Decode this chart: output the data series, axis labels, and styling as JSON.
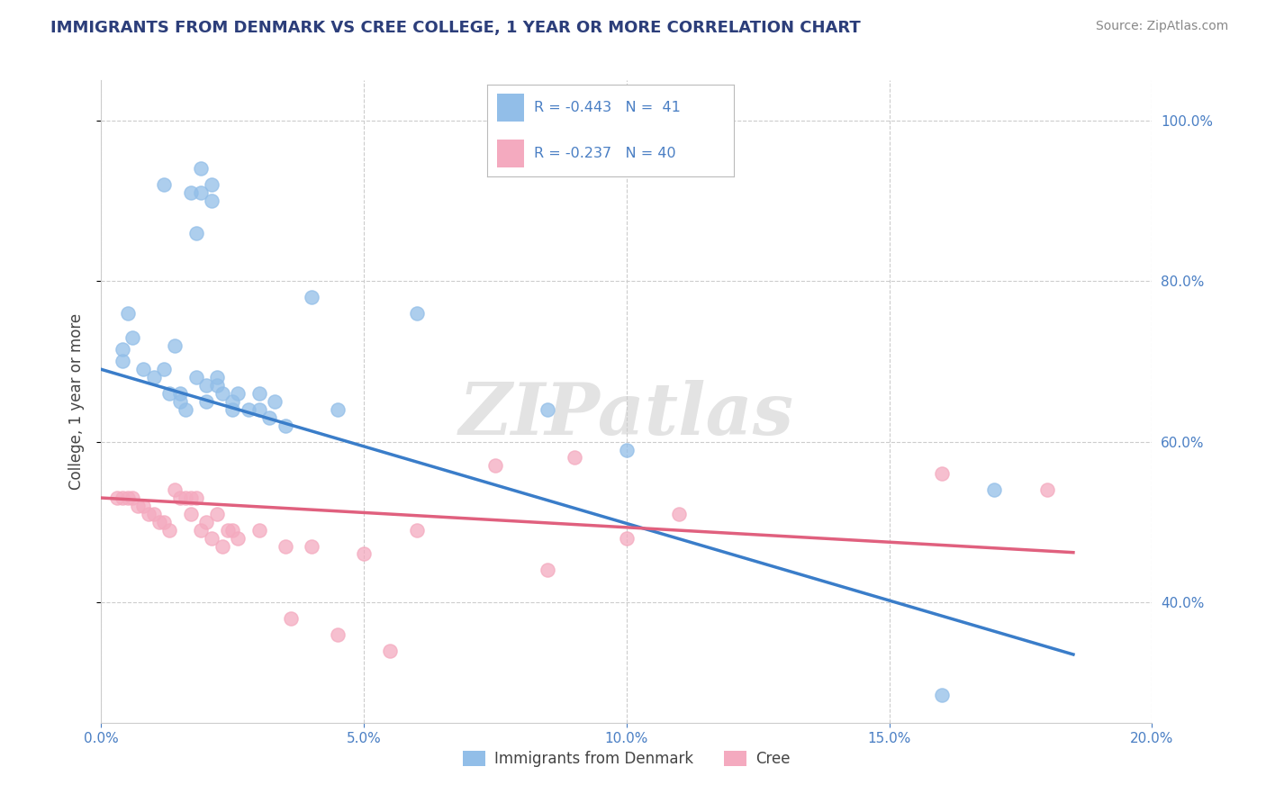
{
  "title": "IMMIGRANTS FROM DENMARK VS CREE COLLEGE, 1 YEAR OR MORE CORRELATION CHART",
  "source_text": "Source: ZipAtlas.com",
  "ylabel": "College, 1 year or more",
  "xlim": [
    0.0,
    0.2
  ],
  "ylim": [
    0.25,
    1.05
  ],
  "xticks": [
    0.0,
    0.05,
    0.1,
    0.15,
    0.2
  ],
  "xticklabels": [
    "0.0%",
    "5.0%",
    "10.0%",
    "15.0%",
    "20.0%"
  ],
  "yticks": [
    0.4,
    0.6,
    0.8,
    1.0
  ],
  "yticklabels": [
    "40.0%",
    "60.0%",
    "80.0%",
    "100.0%"
  ],
  "legend_r1": "R = -0.443",
  "legend_n1": "N =  41",
  "legend_r2": "R = -0.237",
  "legend_n2": "N = 40",
  "blue_color": "#92BEE8",
  "pink_color": "#F4AABF",
  "blue_line_color": "#3A7DC9",
  "pink_line_color": "#E0607E",
  "grid_color": "#CCCCCC",
  "watermark_text": "ZIPatlas",
  "title_color": "#2C3E7A",
  "axis_label_color": "#444444",
  "tick_color": "#4A7FC4",
  "legend_text_color": "#4A7FC4",
  "blue_scatter": [
    [
      0.004,
      0.715
    ],
    [
      0.004,
      0.7
    ],
    [
      0.005,
      0.76
    ],
    [
      0.006,
      0.73
    ],
    [
      0.008,
      0.69
    ],
    [
      0.01,
      0.68
    ],
    [
      0.012,
      0.69
    ],
    [
      0.012,
      0.92
    ],
    [
      0.013,
      0.66
    ],
    [
      0.014,
      0.72
    ],
    [
      0.015,
      0.65
    ],
    [
      0.015,
      0.66
    ],
    [
      0.016,
      0.64
    ],
    [
      0.017,
      0.91
    ],
    [
      0.018,
      0.86
    ],
    [
      0.018,
      0.68
    ],
    [
      0.019,
      0.91
    ],
    [
      0.019,
      0.94
    ],
    [
      0.02,
      0.67
    ],
    [
      0.02,
      0.65
    ],
    [
      0.021,
      0.92
    ],
    [
      0.021,
      0.9
    ],
    [
      0.022,
      0.68
    ],
    [
      0.022,
      0.67
    ],
    [
      0.023,
      0.66
    ],
    [
      0.025,
      0.65
    ],
    [
      0.025,
      0.64
    ],
    [
      0.026,
      0.66
    ],
    [
      0.028,
      0.64
    ],
    [
      0.03,
      0.64
    ],
    [
      0.03,
      0.66
    ],
    [
      0.032,
      0.63
    ],
    [
      0.033,
      0.65
    ],
    [
      0.035,
      0.62
    ],
    [
      0.04,
      0.78
    ],
    [
      0.045,
      0.64
    ],
    [
      0.06,
      0.76
    ],
    [
      0.085,
      0.64
    ],
    [
      0.1,
      0.59
    ],
    [
      0.16,
      0.285
    ],
    [
      0.17,
      0.54
    ]
  ],
  "pink_scatter": [
    [
      0.003,
      0.53
    ],
    [
      0.004,
      0.53
    ],
    [
      0.005,
      0.53
    ],
    [
      0.006,
      0.53
    ],
    [
      0.007,
      0.52
    ],
    [
      0.008,
      0.52
    ],
    [
      0.009,
      0.51
    ],
    [
      0.01,
      0.51
    ],
    [
      0.011,
      0.5
    ],
    [
      0.012,
      0.5
    ],
    [
      0.013,
      0.49
    ],
    [
      0.014,
      0.54
    ],
    [
      0.015,
      0.53
    ],
    [
      0.016,
      0.53
    ],
    [
      0.017,
      0.51
    ],
    [
      0.017,
      0.53
    ],
    [
      0.018,
      0.53
    ],
    [
      0.019,
      0.49
    ],
    [
      0.02,
      0.5
    ],
    [
      0.021,
      0.48
    ],
    [
      0.022,
      0.51
    ],
    [
      0.023,
      0.47
    ],
    [
      0.024,
      0.49
    ],
    [
      0.025,
      0.49
    ],
    [
      0.026,
      0.48
    ],
    [
      0.03,
      0.49
    ],
    [
      0.035,
      0.47
    ],
    [
      0.036,
      0.38
    ],
    [
      0.04,
      0.47
    ],
    [
      0.045,
      0.36
    ],
    [
      0.05,
      0.46
    ],
    [
      0.055,
      0.34
    ],
    [
      0.06,
      0.49
    ],
    [
      0.075,
      0.57
    ],
    [
      0.085,
      0.44
    ],
    [
      0.09,
      0.58
    ],
    [
      0.1,
      0.48
    ],
    [
      0.11,
      0.51
    ],
    [
      0.16,
      0.56
    ],
    [
      0.18,
      0.54
    ]
  ],
  "blue_line": [
    [
      0.0,
      0.69
    ],
    [
      0.185,
      0.335
    ]
  ],
  "pink_line": [
    [
      0.0,
      0.53
    ],
    [
      0.185,
      0.462
    ]
  ]
}
